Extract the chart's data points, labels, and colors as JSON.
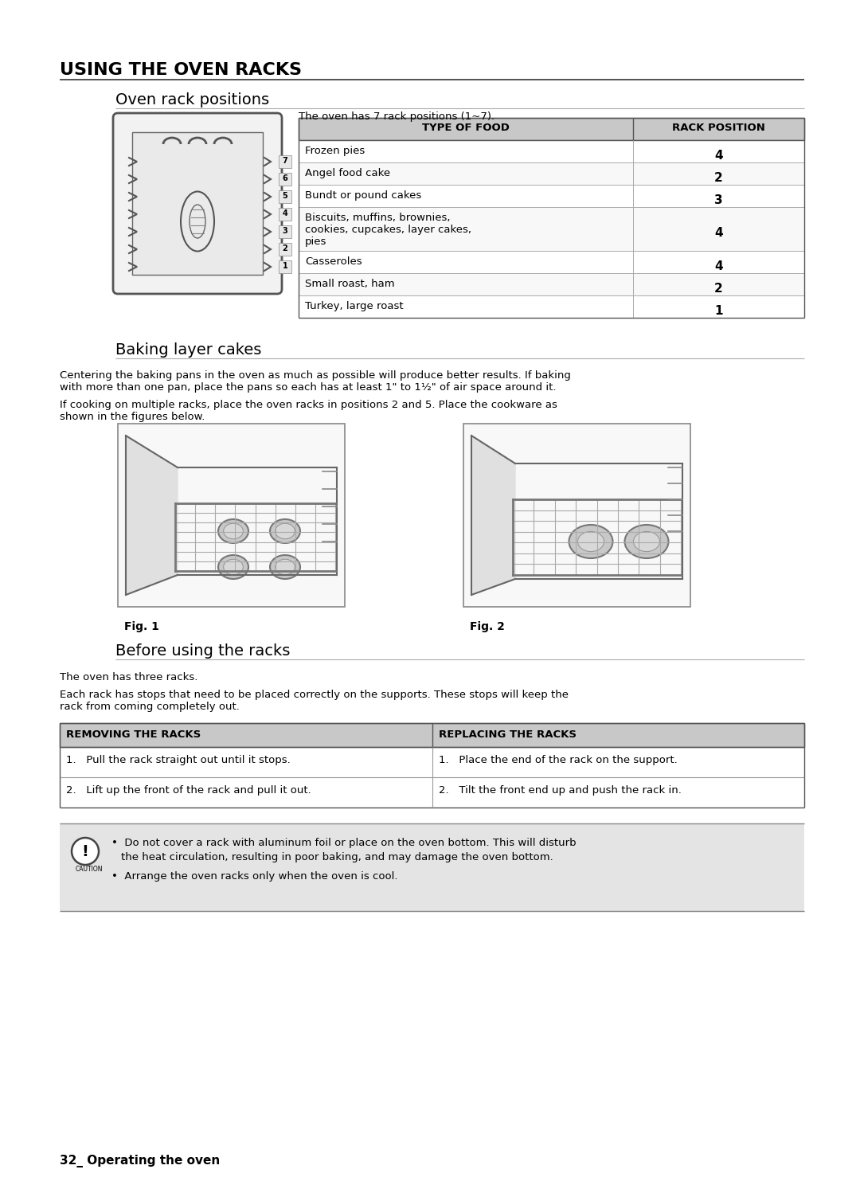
{
  "page_bg": "#ffffff",
  "title": "USING THE OVEN RACKS",
  "section1_title": "Oven rack positions",
  "section1_subtitle": "The oven has 7 rack positions (1~7).",
  "table1_headers": [
    "TYPE OF FOOD",
    "RACK POSITION"
  ],
  "table1_rows": [
    [
      "Frozen pies",
      "4"
    ],
    [
      "Angel food cake",
      "2"
    ],
    [
      "Bundt or pound cakes",
      "3"
    ],
    [
      "Biscuits, muffins, brownies,\ncookies, cupcakes, layer cakes,\npies",
      "4"
    ],
    [
      "Casseroles",
      "4"
    ],
    [
      "Small roast, ham",
      "2"
    ],
    [
      "Turkey, large roast",
      "1"
    ]
  ],
  "section2_title": "Baking layer cakes",
  "section2_para1": "Centering the baking pans in the oven as much as possible will produce better results. If baking\nwith more than one pan, place the pans so each has at least 1\" to 1½\" of air space around it.",
  "section2_para2": "If cooking on multiple racks, place the oven racks in positions 2 and 5. Place the cookware as\nshown in the figures below.",
  "fig1_label": "Fig. 1",
  "fig2_label": "Fig. 2",
  "section3_title": "Before using the racks",
  "section3_para1": "The oven has three racks.",
  "section3_para2": "Each rack has stops that need to be placed correctly on the supports. These stops will keep the\nrack from coming completely out.",
  "table2_headers": [
    "REMOVING THE RACKS",
    "REPLACING THE RACKS"
  ],
  "table2_row1_left": "1.   Pull the rack straight out until it stops.",
  "table2_row1_right": "1.   Place the end of the rack on the support.",
  "table2_row2_left": "2.   Lift up the front of the rack and pull it out.",
  "table2_row2_right": "2.   Tilt the front end up and push the rack in.",
  "caution_line1": "Do not cover a rack with aluminum foil or place on the oven bottom. This will disturb",
  "caution_line2": "the heat circulation, resulting in poor baking, and may damage the oven bottom.",
  "caution_line3": "Arrange the oven racks only when the oven is cool.",
  "footer": "32_ Operating the oven",
  "header_bg": "#c8c8c8",
  "caution_bg": "#e0e0e0",
  "text_color": "#000000"
}
